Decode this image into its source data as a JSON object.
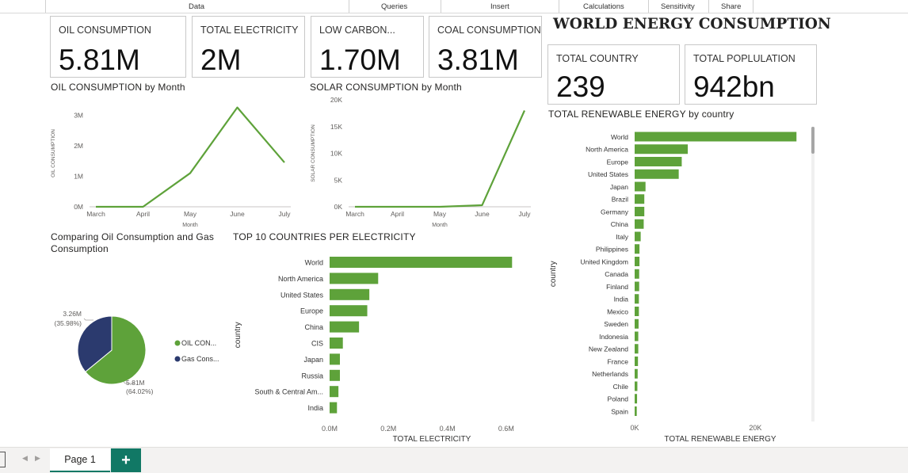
{
  "ribbon": {
    "tabs": [
      "Data",
      "Queries",
      "Insert",
      "Calculations",
      "Sensitivity",
      "Share"
    ]
  },
  "title": "WORLD ENERGY CONSUMPTION",
  "cards": [
    {
      "label": "OIL CONSUMPTION",
      "value": "5.81M"
    },
    {
      "label": "TOTAL ELECTRICITY",
      "value": "2M"
    },
    {
      "label": "LOW CARBON...",
      "value": "1.70M"
    },
    {
      "label": "COAL CONSUMPTION",
      "value": "3.81M"
    },
    {
      "label": "TOTAL COUNTRY",
      "value": "239"
    },
    {
      "label": "TOTAL POPLULATION",
      "value": "942bn"
    }
  ],
  "colors": {
    "green": "#5ea23a",
    "navy": "#2b3a6e",
    "accent": "#117865"
  },
  "footer": {
    "page_tab": "Page 1",
    "add_label": "+"
  },
  "chart_data": [
    {
      "type": "line",
      "title": "OIL CONSUMPTION by Month",
      "xlabel": "Month",
      "ylabel": "OIL CONSUMPTION",
      "x": [
        "March",
        "April",
        "May",
        "June",
        "July"
      ],
      "values": [
        0,
        0,
        1100000,
        3250000,
        1450000
      ],
      "ylim": [
        0,
        3500000
      ],
      "yticks": [
        "0M",
        "1M",
        "2M",
        "3M"
      ]
    },
    {
      "type": "line",
      "title": "SOLAR CONSUMPTION by Month",
      "xlabel": "Month",
      "ylabel": "SOLAR CONSUMPTION",
      "x": [
        "March",
        "April",
        "May",
        "June",
        "July"
      ],
      "values": [
        0,
        0,
        0,
        300,
        18000
      ],
      "ylim": [
        0,
        20000
      ],
      "yticks": [
        "0K",
        "5K",
        "10K",
        "15K",
        "20K"
      ]
    },
    {
      "type": "pie",
      "title": "Comparing Oil Consumption and Gas Consumption",
      "slices": [
        {
          "name": "OIL CON...",
          "value": 5.81,
          "label": "5.81M",
          "pct": "(64.02%)"
        },
        {
          "name": "Gas Cons...",
          "value": 3.26,
          "label": "3.26M",
          "pct": "(35.98%)"
        }
      ]
    },
    {
      "type": "bar",
      "title": "TOP 10 COUNTRIES PER ELECTRICITY",
      "xlabel": "TOTAL ELECTRICITY",
      "ylabel": "country",
      "categories": [
        "World",
        "North America",
        "United States",
        "Europe",
        "China",
        "CIS",
        "Japan",
        "Russia",
        "South & Central Am...",
        "India"
      ],
      "values": [
        620000,
        165000,
        135000,
        128000,
        100000,
        45000,
        35000,
        35000,
        30000,
        25000
      ],
      "xlim": [
        0,
        700000
      ],
      "xticks": [
        {
          "v": 0,
          "t": "0.0M"
        },
        {
          "v": 200000,
          "t": "0.2M"
        },
        {
          "v": 400000,
          "t": "0.4M"
        },
        {
          "v": 600000,
          "t": "0.6M"
        }
      ]
    },
    {
      "type": "bar",
      "title": "TOTAL RENEWABLE ENERGY by country",
      "xlabel": "TOTAL RENEWABLE ENERGY",
      "ylabel": "country",
      "categories": [
        "World",
        "North America",
        "Europe",
        "United States",
        "Japan",
        "Brazil",
        "Germany",
        "China",
        "Italy",
        "Philippines",
        "United Kingdom",
        "Canada",
        "Finland",
        "India",
        "Mexico",
        "Sweden",
        "Indonesia",
        "New Zealand",
        "France",
        "Netherlands",
        "Chile",
        "Poland",
        "Spain"
      ],
      "values": [
        26800,
        8800,
        7800,
        7300,
        1800,
        1600,
        1600,
        1500,
        1000,
        800,
        800,
        750,
        750,
        700,
        700,
        650,
        600,
        600,
        550,
        500,
        450,
        400,
        350
      ],
      "xlim": [
        0,
        29000
      ],
      "xticks": [
        {
          "v": 0,
          "t": "0K"
        },
        {
          "v": 20000,
          "t": "20K"
        }
      ]
    }
  ]
}
